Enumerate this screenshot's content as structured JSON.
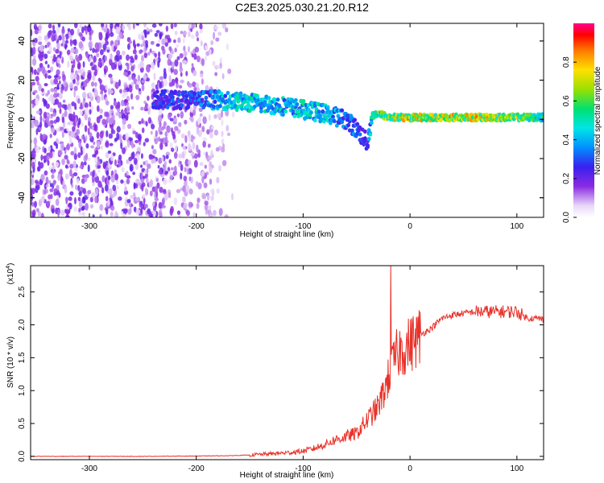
{
  "figure": {
    "title": "C2E3.2025.030.21.20.R12"
  },
  "chart_data": [
    {
      "type": "heatmap",
      "title": "C2E3.2025.030.21.20.R12",
      "xlabel": "Height of straight line (km)",
      "ylabel": "Frequency (Hz)",
      "xlim": [
        -355,
        125
      ],
      "ylim": [
        -50,
        49
      ],
      "xticks": [
        -300,
        -200,
        -100,
        0,
        100
      ],
      "xtick_labels": [
        "-300",
        "-200",
        "-100",
        "0",
        "100"
      ],
      "yticks": [
        -40,
        -20,
        0,
        20,
        40
      ],
      "ytick_labels": [
        "-40",
        "-20",
        "0",
        "20",
        "40"
      ],
      "colorbar": {
        "label": "Normalized spectral amplitude",
        "range": [
          0.0,
          1.0
        ],
        "ticks": [
          0.0,
          0.2,
          0.4,
          0.6,
          0.8
        ],
        "tick_labels": [
          "0.0",
          "0.2",
          "0.4",
          "0.6",
          "0.8"
        ]
      },
      "ridge": {
        "description_values_only": true,
        "x": [
          -240,
          -200,
          -180,
          -160,
          -140,
          -120,
          -100,
          -80,
          -60,
          -50,
          -40,
          -35,
          -30,
          -20,
          0,
          20,
          40,
          60,
          80,
          100,
          125
        ],
        "y": [
          10,
          10,
          10,
          9,
          8,
          7,
          5,
          3,
          0,
          -5,
          -12,
          2,
          3,
          1,
          1,
          1,
          1,
          1,
          1,
          1,
          1
        ],
        "amplitude": [
          0.3,
          0.35,
          0.45,
          0.55,
          0.55,
          0.5,
          0.55,
          0.5,
          0.4,
          0.35,
          0.3,
          0.6,
          0.7,
          0.8,
          0.85,
          0.8,
          0.85,
          0.85,
          0.8,
          0.75,
          0.6
        ]
      }
    },
    {
      "type": "line",
      "xlabel": "Height of straight line (km)",
      "ylabel": "SNR (10 * v/v)",
      "scale_label": "(x10",
      "scale_exponent": "4",
      "xlim": [
        -355,
        125
      ],
      "ylim": [
        -0.05,
        2.9
      ],
      "xticks": [
        -300,
        -200,
        -100,
        0,
        100
      ],
      "xtick_labels": [
        "-300",
        "-200",
        "-100",
        "0",
        "100"
      ],
      "yticks": [
        0.0,
        0.5,
        1.0,
        1.5,
        2.0,
        2.5
      ],
      "ytick_labels": [
        "0.0",
        "0.5",
        "1.0",
        "1.5",
        "2.0",
        "2.5"
      ],
      "series": [
        {
          "name": "SNR",
          "color": "#e8322a",
          "x": [
            -355,
            -300,
            -250,
            -200,
            -170,
            -150,
            -130,
            -110,
            -100,
            -90,
            -80,
            -70,
            -60,
            -50,
            -45,
            -40,
            -35,
            -30,
            -25,
            -22,
            -20,
            -18,
            -15,
            -12,
            -10,
            -5,
            0,
            10,
            20,
            30,
            40,
            60,
            80,
            100,
            110,
            120,
            125
          ],
          "y": [
            0.0,
            0.0,
            0.0,
            0.005,
            0.01,
            0.02,
            0.04,
            0.06,
            0.08,
            0.12,
            0.18,
            0.25,
            0.3,
            0.35,
            0.45,
            0.55,
            0.65,
            0.75,
            0.95,
            1.1,
            1.2,
            1.3,
            1.45,
            1.55,
            1.6,
            1.65,
            1.7,
            1.85,
            1.95,
            2.1,
            2.15,
            2.2,
            2.2,
            2.2,
            2.1,
            2.1,
            2.08
          ]
        }
      ],
      "spike": {
        "x": -18,
        "y": 2.95
      }
    }
  ]
}
